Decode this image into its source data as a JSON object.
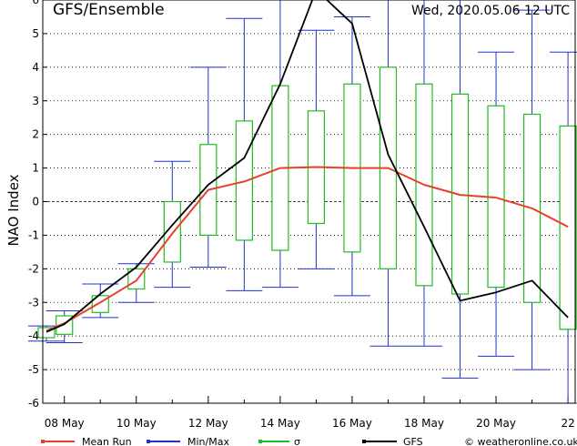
{
  "chart_data": {
    "type": "line",
    "title": "GFS/Ensemble",
    "run_label": "Wed, 2020.05.06   12 UTC",
    "ylabel": "NAO Index",
    "ylim": [
      -6,
      6
    ],
    "yticks": [
      -6,
      -5,
      -4,
      -3,
      -2,
      -1,
      0,
      1,
      2,
      3,
      4,
      5,
      6
    ],
    "xlim": [
      7.4,
      22.2
    ],
    "xticks": [
      {
        "pos": 8,
        "label": "08 May"
      },
      {
        "pos": 10,
        "label": "10 May"
      },
      {
        "pos": 12,
        "label": "12 May"
      },
      {
        "pos": 14,
        "label": "14 May"
      },
      {
        "pos": 16,
        "label": "16 May"
      },
      {
        "pos": 18,
        "label": "18 May"
      },
      {
        "pos": 20,
        "label": "20 May"
      },
      {
        "pos": 22,
        "label": "22"
      }
    ],
    "x": [
      7.5,
      8,
      9,
      10,
      11,
      12,
      13,
      14,
      15,
      16,
      17,
      18,
      19,
      20,
      21,
      22
    ],
    "mean_run": [
      -3.85,
      -3.62,
      -3.0,
      -2.35,
      -0.95,
      0.35,
      0.6,
      1.0,
      1.03,
      1.0,
      1.0,
      0.5,
      0.2,
      0.12,
      -0.2,
      -0.75
    ],
    "gfs": [
      -3.88,
      -3.65,
      -2.75,
      -1.95,
      -0.7,
      0.5,
      1.3,
      3.5,
      6.3,
      5.3,
      1.4,
      -0.75,
      -2.95,
      -2.7,
      -2.35,
      -3.45
    ],
    "min": [
      -4.15,
      -4.2,
      -3.45,
      -3.0,
      -2.55,
      -1.95,
      -2.65,
      -2.55,
      -2.0,
      -2.8,
      -4.3,
      -4.3,
      -5.25,
      -4.6,
      -5.0,
      -6.0
    ],
    "max": [
      -3.7,
      -3.25,
      -2.45,
      -1.85,
      1.2,
      4.0,
      5.45,
      6.3,
      5.1,
      5.5,
      6.3,
      6.3,
      6.3,
      4.45,
      5.7,
      4.45
    ],
    "sigma_low": [
      -4.05,
      -3.95,
      -3.3,
      -2.6,
      -1.8,
      -1.0,
      -1.15,
      -1.45,
      -0.65,
      -1.5,
      -2.0,
      -2.5,
      -2.75,
      -2.55,
      -3.0,
      -3.8
    ],
    "sigma_high": [
      -3.75,
      -3.4,
      -2.8,
      -2.0,
      0.0,
      1.7,
      2.4,
      3.45,
      2.7,
      3.5,
      4.0,
      3.5,
      3.2,
      2.85,
      2.6,
      2.25
    ],
    "zero_line": true,
    "legend": [
      {
        "name": "Mean Run",
        "color": "#e8402a"
      },
      {
        "name": "Min/Max",
        "color": "#2233cc"
      },
      {
        "name": "σ",
        "color": "#22bb22"
      },
      {
        "name": "GFS",
        "color": "#000000"
      }
    ],
    "credit": "© weatheronline.co.uk",
    "colors": {
      "mean": "#e8402a",
      "minmax": "#2233cc",
      "sigma": "#22bb22",
      "gfs": "#000000",
      "grid": "#000000"
    }
  }
}
